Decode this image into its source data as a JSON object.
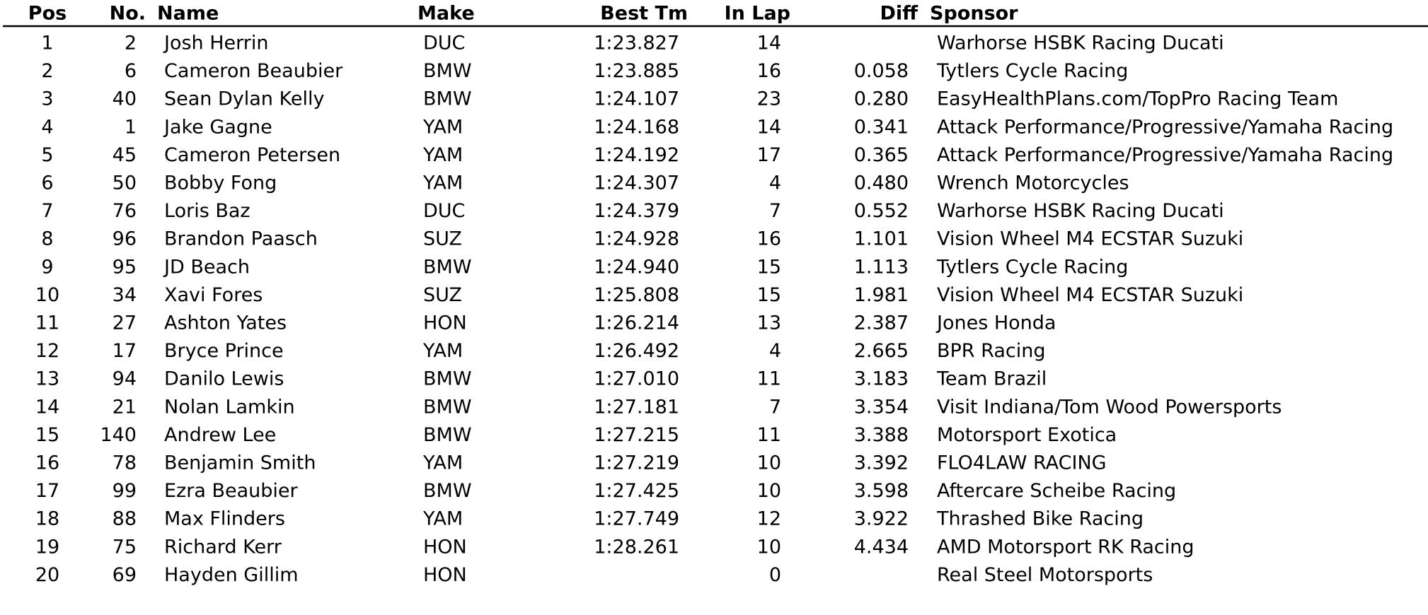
{
  "table": {
    "headers": [
      "Pos",
      "No.",
      "Name",
      "Make",
      "Best Tm",
      "In Lap",
      "Diff",
      "Sponsor"
    ],
    "rows": [
      [
        "1",
        "2",
        "Josh Herrin",
        "DUC",
        "1:23.827",
        "14",
        null,
        "Warhorse HSBK Racing Ducati"
      ],
      [
        "2",
        "6",
        "Cameron Beaubier",
        "BMW",
        "1:23.885",
        "16",
        "0.058",
        "Tytlers Cycle Racing"
      ],
      [
        "3",
        "40",
        "Sean Dylan Kelly",
        "BMW",
        "1:24.107",
        "23",
        "0.280",
        "EasyHealthPlans.com/TopPro Racing Team"
      ],
      [
        "4",
        "1",
        "Jake Gagne",
        "YAM",
        "1:24.168",
        "14",
        "0.341",
        "Attack Performance/Progressive/Yamaha Racing"
      ],
      [
        "5",
        "45",
        "Cameron Petersen",
        "YAM",
        "1:24.192",
        "17",
        "0.365",
        "Attack Performance/Progressive/Yamaha Racing"
      ],
      [
        "6",
        "50",
        "Bobby Fong",
        "YAM",
        "1:24.307",
        "4",
        "0.480",
        "Wrench Motorcycles"
      ],
      [
        "7",
        "76",
        "Loris Baz",
        "DUC",
        "1:24.379",
        "7",
        "0.552",
        "Warhorse HSBK Racing Ducati"
      ],
      [
        "8",
        "96",
        "Brandon Paasch",
        "SUZ",
        "1:24.928",
        "16",
        "1.101",
        "Vision Wheel M4 ECSTAR Suzuki"
      ],
      [
        "9",
        "95",
        "JD Beach",
        "BMW",
        "1:24.940",
        "15",
        "1.113",
        "Tytlers Cycle Racing"
      ],
      [
        "10",
        "34",
        "Xavi Fores",
        "SUZ",
        "1:25.808",
        "15",
        "1.981",
        "Vision Wheel M4 ECSTAR Suzuki"
      ],
      [
        "11",
        "27",
        "Ashton Yates",
        "HON",
        "1:26.214",
        "13",
        "2.387",
        "Jones Honda"
      ],
      [
        "12",
        "17",
        "Bryce Prince",
        "YAM",
        "1:26.492",
        "4",
        "2.665",
        "BPR Racing"
      ],
      [
        "13",
        "94",
        "Danilo Lewis",
        "BMW",
        "1:27.010",
        "11",
        "3.183",
        "Team Brazil"
      ],
      [
        "14",
        "21",
        "Nolan Lamkin",
        "BMW",
        "1:27.181",
        "7",
        "3.354",
        "Visit Indiana/Tom Wood Powersports"
      ],
      [
        "15",
        "140",
        "Andrew Lee",
        "BMW",
        "1:27.215",
        "11",
        "3.388",
        "Motorsport Exotica"
      ],
      [
        "16",
        "78",
        "Benjamin Smith",
        "YAM",
        "1:27.219",
        "10",
        "3.392",
        "FLO4LAW RACING"
      ],
      [
        "17",
        "99",
        "Ezra Beaubier",
        "BMW",
        "1:27.425",
        "10",
        "3.598",
        "Aftercare Scheibe Racing"
      ],
      [
        "18",
        "88",
        "Max Flinders",
        "YAM",
        "1:27.749",
        "12",
        "3.922",
        "Thrashed Bike Racing"
      ],
      [
        "19",
        "75",
        "Richard Kerr",
        "HON",
        "1:28.261",
        "10",
        "4.434",
        "AMD Motorsport RK Racing"
      ],
      [
        "20",
        "69",
        "Hayden Gillim",
        "HON",
        null,
        "0",
        null,
        "Real Steel Motorsports"
      ]
    ]
  }
}
